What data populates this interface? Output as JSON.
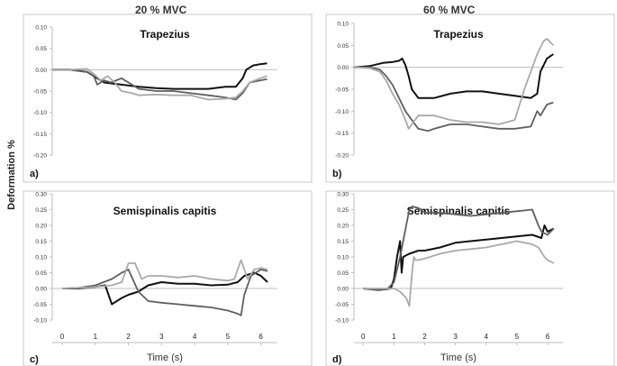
{
  "figure": {
    "column_titles": [
      "20 % MVC",
      "60 % MVC"
    ],
    "ylabel": "Deformation %",
    "xlabel": "Time (s)"
  },
  "colors": {
    "black": "#111111",
    "dark_gray": "#5f5f5f",
    "light_gray": "#a9a9a9",
    "frame": "#c8c8c8",
    "axis": "#bdbdbd"
  },
  "chart_data": [
    {
      "type": "line",
      "panel": "a)",
      "title": "Trapezius",
      "xlim": [
        0,
        6.5
      ],
      "ylim": [
        -0.2,
        0.1
      ],
      "yticks": [
        "0.10",
        "0.05",
        "0.00",
        "-0.05",
        "-0.10",
        "-0.15",
        "-0.20"
      ],
      "ytick_values": [
        0.1,
        0.05,
        0.0,
        -0.05,
        -0.1,
        -0.15,
        -0.2
      ],
      "xticks": [],
      "grid": false,
      "series": [
        {
          "color": "#111111",
          "x": [
            0,
            0.5,
            1.0,
            1.3,
            1.5,
            1.7,
            2.0,
            2.5,
            3.0,
            3.5,
            4.0,
            4.5,
            5.0,
            5.3,
            5.5,
            5.6,
            5.8,
            6.0,
            6.2
          ],
          "y": [
            0,
            0,
            -0.005,
            -0.02,
            -0.03,
            -0.032,
            -0.035,
            -0.04,
            -0.043,
            -0.045,
            -0.045,
            -0.045,
            -0.04,
            -0.04,
            -0.02,
            0,
            0.01,
            0.013,
            0.015
          ]
        },
        {
          "color": "#5f5f5f",
          "x": [
            0,
            0.5,
            1.0,
            1.2,
            1.3,
            1.4,
            1.5,
            1.7,
            2.0,
            2.3,
            2.5,
            3.0,
            3.5,
            4.0,
            4.5,
            5.0,
            5.3,
            5.5,
            5.7,
            6.0,
            6.2
          ],
          "y": [
            0,
            0,
            -0.005,
            -0.015,
            -0.035,
            -0.03,
            -0.025,
            -0.03,
            -0.02,
            -0.035,
            -0.045,
            -0.05,
            -0.05,
            -0.055,
            -0.06,
            -0.065,
            -0.07,
            -0.055,
            -0.03,
            -0.025,
            -0.022
          ]
        },
        {
          "color": "#a9a9a9",
          "x": [
            0,
            0.5,
            1.0,
            1.2,
            1.4,
            1.6,
            1.8,
            2.0,
            2.3,
            2.5,
            3.0,
            3.5,
            4.0,
            4.5,
            5.0,
            5.3,
            5.5,
            5.7,
            6.0,
            6.2
          ],
          "y": [
            0,
            0,
            0.002,
            -0.01,
            -0.025,
            -0.015,
            -0.03,
            -0.05,
            -0.055,
            -0.06,
            -0.058,
            -0.06,
            -0.06,
            -0.07,
            -0.068,
            -0.065,
            -0.05,
            -0.03,
            -0.02,
            -0.015
          ]
        }
      ]
    },
    {
      "type": "line",
      "panel": "b)",
      "title": "Trapezius",
      "xlim": [
        0,
        6.5
      ],
      "ylim": [
        -0.2,
        0.1
      ],
      "yticks": [
        "0.10",
        "0.05",
        "0.00",
        "-0.05",
        "-0.10",
        "-0.15",
        "-0.20"
      ],
      "ytick_values": [
        0.1,
        0.05,
        0.0,
        -0.05,
        -0.1,
        -0.15,
        -0.2
      ],
      "xticks": [],
      "grid": false,
      "series": [
        {
          "color": "#111111",
          "x": [
            0,
            0.5,
            0.9,
            1.2,
            1.4,
            1.5,
            1.6,
            1.7,
            1.8,
            2.0,
            2.5,
            3.0,
            3.5,
            4.0,
            4.5,
            5.0,
            5.5,
            5.7,
            5.8,
            6.0,
            6.2
          ],
          "y": [
            0,
            0.003,
            0.01,
            0.012,
            0.015,
            0.02,
            0.005,
            -0.02,
            -0.05,
            -0.07,
            -0.07,
            -0.06,
            -0.055,
            -0.055,
            -0.06,
            -0.065,
            -0.07,
            -0.06,
            -0.01,
            0.02,
            0.03
          ]
        },
        {
          "color": "#5f5f5f",
          "x": [
            0,
            0.5,
            0.8,
            1.0,
            1.2,
            1.4,
            1.6,
            1.8,
            2.0,
            2.3,
            2.5,
            3.0,
            3.5,
            4.0,
            4.5,
            5.0,
            5.5,
            5.7,
            5.8,
            6.0,
            6.2
          ],
          "y": [
            0,
            0,
            -0.005,
            -0.02,
            -0.04,
            -0.07,
            -0.1,
            -0.12,
            -0.14,
            -0.145,
            -0.14,
            -0.13,
            -0.13,
            -0.135,
            -0.14,
            -0.14,
            -0.135,
            -0.1,
            -0.11,
            -0.085,
            -0.08
          ]
        },
        {
          "color": "#a9a9a9",
          "x": [
            0,
            0.5,
            0.8,
            1.0,
            1.2,
            1.4,
            1.6,
            1.7,
            1.8,
            2.0,
            2.5,
            3.0,
            3.5,
            4.0,
            4.5,
            5.0,
            5.3,
            5.5,
            5.7,
            5.9,
            6.0,
            6.2
          ],
          "y": [
            0,
            -0.002,
            -0.01,
            -0.03,
            -0.06,
            -0.085,
            -0.12,
            -0.14,
            -0.13,
            -0.11,
            -0.11,
            -0.12,
            -0.125,
            -0.125,
            -0.13,
            -0.12,
            -0.05,
            -0.01,
            0.03,
            0.06,
            0.065,
            0.05
          ]
        }
      ]
    },
    {
      "type": "line",
      "panel": "c)",
      "title": "Semispinalis capitis",
      "xlim": [
        -0.3,
        6.5
      ],
      "ylim": [
        -0.1,
        0.3
      ],
      "yticks": [
        "0.30",
        "0.25",
        "0.20",
        "0.15",
        "0.10",
        "0.05",
        "0.00",
        "-0.05",
        "-0.10"
      ],
      "ytick_values": [
        0.3,
        0.25,
        0.2,
        0.15,
        0.1,
        0.05,
        0.0,
        -0.05,
        -0.1
      ],
      "xticks": [
        "0",
        "1",
        "2",
        "3",
        "4",
        "5",
        "6"
      ],
      "xtick_values": [
        0,
        1,
        2,
        3,
        4,
        5,
        6
      ],
      "xlabel": "Time (s)",
      "grid": false,
      "series": [
        {
          "color": "#111111",
          "x": [
            0,
            0.5,
            1.0,
            1.3,
            1.5,
            1.8,
            2.0,
            2.3,
            2.6,
            3.0,
            3.5,
            4.0,
            4.5,
            5.0,
            5.3,
            5.5,
            5.8,
            6.0,
            6.2
          ],
          "y": [
            0,
            0,
            0.005,
            0.01,
            -0.05,
            -0.03,
            -0.02,
            -0.01,
            0.01,
            0.02,
            0.015,
            0.015,
            0.01,
            0.012,
            0.02,
            0.04,
            0.05,
            0.04,
            0.02
          ]
        },
        {
          "color": "#5f5f5f",
          "x": [
            0,
            0.5,
            1.0,
            1.5,
            1.8,
            2.0,
            2.3,
            2.6,
            3.0,
            3.5,
            4.0,
            4.5,
            5.0,
            5.3,
            5.4,
            5.5,
            5.7,
            6.0,
            6.2
          ],
          "y": [
            0,
            0.002,
            0.01,
            0.03,
            0.05,
            0.06,
            -0.01,
            -0.04,
            -0.045,
            -0.05,
            -0.055,
            -0.06,
            -0.07,
            -0.08,
            -0.085,
            -0.02,
            0.04,
            0.06,
            0.055
          ]
        },
        {
          "color": "#a9a9a9",
          "x": [
            0,
            0.5,
            1.0,
            1.5,
            1.8,
            2.0,
            2.2,
            2.4,
            2.6,
            3.0,
            3.5,
            4.0,
            4.5,
            5.0,
            5.2,
            5.4,
            5.6,
            5.8,
            6.0,
            6.2
          ],
          "y": [
            0,
            0.002,
            0.005,
            0.01,
            0.02,
            0.08,
            0.08,
            0.03,
            0.04,
            0.04,
            0.035,
            0.04,
            0.03,
            0.025,
            0.03,
            0.09,
            0.03,
            0.06,
            0.065,
            0.06
          ]
        }
      ]
    },
    {
      "type": "line",
      "panel": "d)",
      "title": "Semispinalis capitis",
      "xlim": [
        -0.3,
        6.5
      ],
      "ylim": [
        -0.1,
        0.3
      ],
      "yticks": [
        "0.30",
        "0.25",
        "0.20",
        "0.15",
        "0.10",
        "0.05",
        "0.00",
        "-0.05",
        "-0.10"
      ],
      "ytick_values": [
        0.3,
        0.25,
        0.2,
        0.15,
        0.1,
        0.05,
        0.0,
        -0.05,
        -0.1
      ],
      "xticks": [
        "0",
        "1",
        "2",
        "3",
        "4",
        "5",
        "6"
      ],
      "xtick_values": [
        0,
        1,
        2,
        3,
        4,
        5,
        6
      ],
      "xlabel": "Time (s)",
      "grid": false,
      "series": [
        {
          "color": "#111111",
          "x": [
            0,
            0.5,
            0.9,
            1.0,
            1.1,
            1.2,
            1.25,
            1.3,
            1.5,
            1.8,
            2.0,
            2.5,
            3.0,
            3.5,
            4.0,
            4.5,
            5.0,
            5.5,
            5.8,
            5.9,
            6.0,
            6.2
          ],
          "y": [
            0,
            -0.005,
            0,
            0.03,
            0.1,
            0.15,
            0.05,
            0.1,
            0.11,
            0.12,
            0.12,
            0.13,
            0.145,
            0.15,
            0.155,
            0.16,
            0.165,
            0.17,
            0.16,
            0.2,
            0.18,
            0.19
          ]
        },
        {
          "color": "#5f5f5f",
          "x": [
            0,
            0.5,
            0.8,
            1.0,
            1.2,
            1.4,
            1.5,
            1.6,
            1.8,
            2.0,
            2.5,
            3.0,
            3.5,
            4.0,
            4.5,
            5.0,
            5.5,
            5.7,
            5.8,
            6.0,
            6.2
          ],
          "y": [
            0,
            -0.005,
            0,
            0.02,
            0.1,
            0.2,
            0.25,
            0.26,
            0.255,
            0.24,
            0.24,
            0.235,
            0.23,
            0.235,
            0.24,
            0.245,
            0.25,
            0.2,
            0.18,
            0.17,
            0.19
          ]
        },
        {
          "color": "#a9a9a9",
          "x": [
            0,
            0.5,
            1.0,
            1.2,
            1.4,
            1.5,
            1.6,
            1.65,
            1.7,
            1.8,
            2.0,
            2.5,
            3.0,
            3.5,
            4.0,
            4.5,
            5.0,
            5.5,
            5.7,
            5.9,
            6.0,
            6.2
          ],
          "y": [
            0,
            0,
            0,
            -0.01,
            -0.03,
            -0.055,
            0.06,
            0.1,
            0.09,
            0.09,
            0.095,
            0.11,
            0.12,
            0.125,
            0.13,
            0.14,
            0.15,
            0.14,
            0.13,
            0.1,
            0.09,
            0.08
          ]
        }
      ]
    }
  ]
}
